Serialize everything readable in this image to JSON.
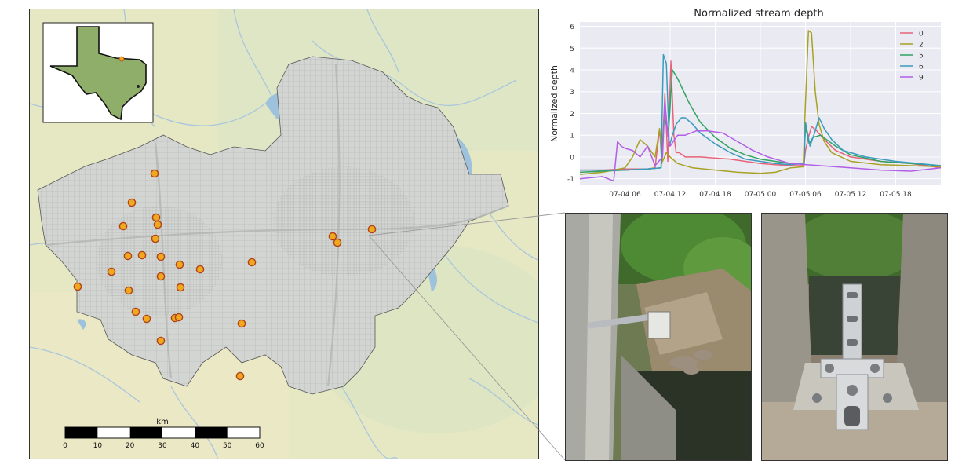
{
  "chart_data": {
    "type": "line",
    "title": "Normalized stream depth",
    "xlabel": "",
    "ylabel": "Normalized depth",
    "xlim": [
      "07-04 00:00",
      "07-06 00:00"
    ],
    "ylim": [
      -1.3,
      6.2
    ],
    "x_tick_labels": [
      "07-04 06",
      "07-04 12",
      "07-04 18",
      "07-05 00",
      "07-05 06",
      "07-05 12",
      "07-05 18"
    ],
    "y_tick_labels": [
      "-1",
      "0",
      "1",
      "2",
      "3",
      "4",
      "5",
      "6"
    ],
    "grid": true,
    "legend_position": "top-right",
    "series": [
      {
        "name": "0",
        "color": "#e8637a",
        "x_hours": [
          0,
          3,
          6,
          9,
          10,
          10.6,
          10.9,
          11.3,
          11.7,
          12.1,
          12.5,
          12.8,
          13.2,
          14,
          16,
          20,
          24,
          26,
          28,
          29.8,
          30,
          30.4,
          30.8,
          31.5,
          32.5,
          34,
          36,
          40,
          44,
          48
        ],
        "y": [
          -0.6,
          -0.6,
          -0.55,
          -0.55,
          -0.5,
          1.3,
          -0.3,
          2.9,
          -0.2,
          4.4,
          1.0,
          0.2,
          0.2,
          0.0,
          0.0,
          -0.1,
          -0.3,
          -0.35,
          -0.4,
          -0.4,
          0.3,
          0.9,
          1.4,
          1.2,
          0.8,
          0.3,
          0.0,
          -0.2,
          -0.3,
          -0.5
        ]
      },
      {
        "name": "2",
        "color": "#a8a122",
        "x_hours": [
          0,
          3,
          6,
          7,
          8,
          9,
          10,
          10.6,
          11,
          11.5,
          12,
          13,
          15,
          18,
          21,
          24,
          26,
          28,
          29.7,
          30,
          30.4,
          30.8,
          31.3,
          31.8,
          32.5,
          33.5,
          36,
          40,
          44,
          48
        ],
        "y": [
          -0.8,
          -0.7,
          -0.5,
          0.0,
          0.8,
          0.5,
          0.0,
          1.3,
          -0.2,
          0.2,
          0.0,
          -0.3,
          -0.5,
          -0.6,
          -0.7,
          -0.75,
          -0.7,
          -0.5,
          -0.45,
          2.5,
          5.8,
          5.7,
          3.0,
          1.5,
          0.7,
          0.2,
          -0.2,
          -0.35,
          -0.4,
          -0.45
        ]
      },
      {
        "name": "5",
        "color": "#2fa35f",
        "x_hours": [
          0,
          3,
          6,
          9,
          10.8,
          11.2,
          11.8,
          12.3,
          13,
          14.5,
          16,
          18,
          20,
          22,
          24,
          26,
          28,
          29.8,
          30,
          30.5,
          31,
          32,
          34,
          36,
          40,
          44,
          48
        ],
        "y": [
          -0.7,
          -0.65,
          -0.6,
          -0.55,
          -0.5,
          1.8,
          1.2,
          4.0,
          3.6,
          2.5,
          1.6,
          0.9,
          0.4,
          0.1,
          -0.1,
          -0.2,
          -0.3,
          -0.3,
          1.4,
          0.6,
          0.9,
          1.0,
          0.5,
          0.1,
          -0.2,
          -0.3,
          -0.4
        ]
      },
      {
        "name": "6",
        "color": "#3a9bbf",
        "x_hours": [
          0,
          3,
          6,
          9,
          10.8,
          11.1,
          11.5,
          11.9,
          12.3,
          12.8,
          13.5,
          14,
          15,
          16,
          18,
          20,
          22,
          24,
          26,
          28,
          29.8,
          30,
          30.6,
          31.3,
          31.8,
          32.5,
          33.5,
          35,
          38,
          42,
          48
        ],
        "y": [
          -0.6,
          -0.6,
          -0.6,
          -0.55,
          -0.5,
          4.7,
          4.3,
          0.5,
          1.0,
          1.5,
          1.8,
          1.8,
          1.5,
          1.1,
          0.6,
          0.2,
          -0.1,
          -0.2,
          -0.3,
          -0.35,
          -0.3,
          1.6,
          0.5,
          1.2,
          1.8,
          1.3,
          0.8,
          0.3,
          0.0,
          -0.2,
          -0.4
        ]
      },
      {
        "name": "9",
        "color": "#b25fe8",
        "x_hours": [
          0,
          3,
          4.5,
          5,
          5.5,
          6,
          7,
          8,
          9,
          10,
          11,
          11.3,
          11.7,
          12,
          13,
          14,
          15.5,
          17,
          19,
          21,
          23,
          25,
          28,
          32,
          36,
          40,
          44,
          48
        ],
        "y": [
          -1.0,
          -0.9,
          -1.1,
          0.7,
          0.5,
          0.4,
          0.3,
          0.0,
          0.5,
          -0.4,
          0.0,
          2.6,
          1.0,
          0.5,
          1.0,
          1.0,
          1.2,
          1.2,
          1.1,
          0.7,
          0.3,
          0.0,
          -0.3,
          -0.4,
          -0.5,
          -0.6,
          -0.65,
          -0.5
        ]
      }
    ]
  },
  "map": {
    "scalebar": {
      "unit_label": "km",
      "tick_labels": [
        "0",
        "10",
        "20",
        "30",
        "40",
        "50",
        "60"
      ]
    },
    "station_count": 33
  },
  "photos": {
    "left": "bridge-mounted-sensor-photo",
    "right": "sensor-mount-bracket-photo"
  },
  "colors": {
    "station_fill": "#f0a81e",
    "station_stroke": "#b0431a",
    "map_background": "#e4e8c8",
    "water": "#a8c8e0",
    "city": "#d8dad6",
    "texas_fill": "#8fae6a"
  },
  "icons": {
    "station_marker": "orange-circle-marker",
    "inset": "texas-outline-icon"
  }
}
